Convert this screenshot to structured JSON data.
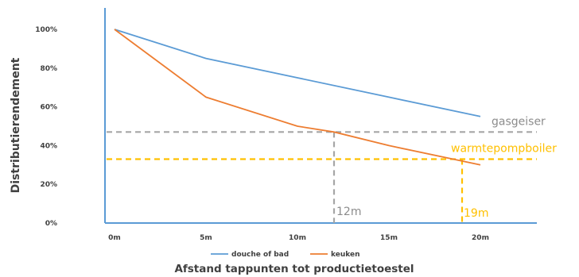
{
  "chart_data": {
    "type": "line",
    "ylabel": "Distributierendement",
    "xlabel": "Afstand tappunten tot productietoestel",
    "x_ticks": [
      "0m",
      "5m",
      "10m",
      "15m",
      "20m"
    ],
    "y_ticks": [
      "0%",
      "20%",
      "40%",
      "60%",
      "80%",
      "100%"
    ],
    "xlim": [
      0,
      23
    ],
    "ylim": [
      0,
      100
    ],
    "grid": false,
    "legend_position": "bottom",
    "series": [
      {
        "name": "douche of bad",
        "color": "#5b9bd5",
        "x": [
          0,
          5,
          10,
          15,
          20
        ],
        "y": [
          100,
          85,
          75,
          65,
          55
        ]
      },
      {
        "name": "keuken",
        "color": "#ed7d31",
        "x": [
          0,
          5,
          10,
          12,
          15,
          20
        ],
        "y": [
          100,
          65,
          50,
          47,
          40,
          30
        ]
      }
    ],
    "reference_lines": [
      {
        "label": "gasgeiser",
        "y": 47,
        "x_intersect": 12,
        "intersect_label": "12m",
        "color": "#a6a6a6"
      },
      {
        "label": "warmtepompboiler",
        "y": 33,
        "x_intersect": 19,
        "intersect_label": "19m",
        "color": "#ffc000"
      }
    ]
  }
}
